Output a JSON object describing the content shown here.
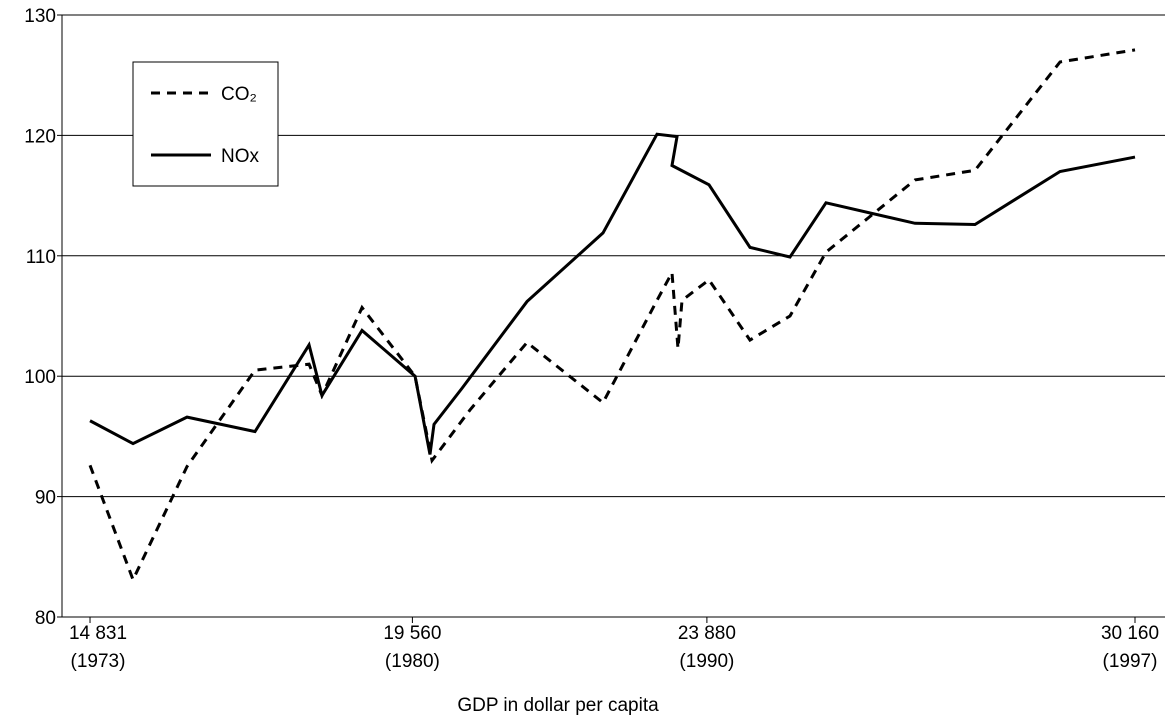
{
  "chart_data": {
    "type": "line",
    "x_label": "GDP in dollar per capita",
    "xlim": [
      14420,
      30600
    ],
    "xticks": [
      {
        "value": 14831,
        "label": "14 831",
        "year": "(1973)"
      },
      {
        "value": 19560,
        "label": "19 560",
        "year": "(1980)"
      },
      {
        "value": 23880,
        "label": "23 880",
        "year": "(1990)"
      },
      {
        "value": 30160,
        "label": "30 160",
        "year": "(1997)"
      }
    ],
    "ylim": [
      80,
      130
    ],
    "yticks": [
      80,
      90,
      100,
      110,
      120,
      130
    ],
    "grid": true,
    "legend": "top-left",
    "series": [
      {
        "name": "CO₂",
        "color": "#000000",
        "dash": true,
        "x": [
          14831,
          15462,
          16254,
          17251,
          18044,
          18234,
          18821,
          19599,
          19848,
          20405,
          21241,
          22356,
          23148,
          23368,
          23456,
          23515,
          23911,
          24512,
          25099,
          25627,
          26933,
          27813,
          29060,
          30160
        ],
        "values": [
          92.6,
          83.1,
          92.5,
          100.5,
          101.0,
          98.4,
          105.7,
          100.0,
          93.0,
          97.2,
          102.8,
          97.8,
          106.3,
          108.6,
          102.3,
          106.3,
          108.0,
          103.0,
          105.0,
          110.3,
          116.3,
          117.1,
          126.1,
          127.1
        ]
      },
      {
        "name": "NOx",
        "color": "#000000",
        "dash": false,
        "x": [
          14831,
          15462,
          16254,
          17251,
          18044,
          18234,
          18821,
          19599,
          19818,
          19877,
          20288,
          21241,
          22356,
          23148,
          23442,
          23368,
          23911,
          24512,
          25099,
          25627,
          26933,
          27813,
          29060,
          30160
        ],
        "values": [
          96.3,
          94.4,
          96.6,
          95.4,
          102.6,
          98.4,
          103.8,
          100.0,
          93.5,
          96.0,
          99.0,
          106.2,
          111.9,
          120.1,
          119.9,
          117.5,
          115.9,
          110.7,
          109.9,
          114.4,
          112.7,
          112.6,
          117.0,
          118.2
        ]
      }
    ]
  }
}
